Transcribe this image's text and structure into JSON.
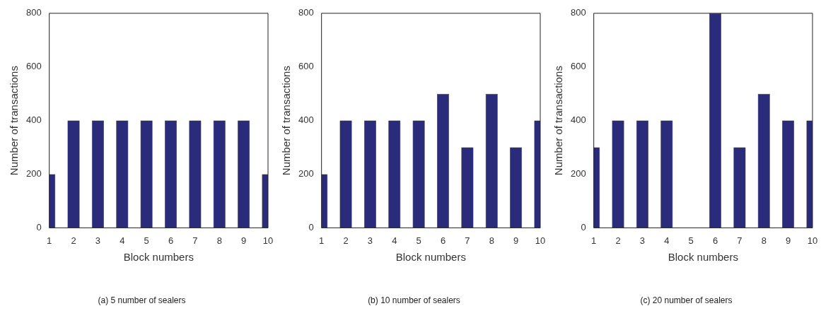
{
  "chart_data": [
    {
      "type": "bar",
      "x": [
        1,
        2,
        3,
        4,
        5,
        6,
        7,
        8,
        9,
        10
      ],
      "values": [
        200,
        400,
        400,
        400,
        400,
        400,
        400,
        400,
        400,
        200
      ],
      "color": "#2b2b7c",
      "xlim": [
        1,
        10
      ],
      "xticks": [
        1,
        2,
        3,
        4,
        5,
        6,
        7,
        8,
        9,
        10
      ],
      "ylim": [
        0,
        800
      ],
      "yticks": [
        0,
        200,
        400,
        600,
        800
      ],
      "xlabel": "Block numbers",
      "ylabel": "Number of transactions",
      "grid": false,
      "legend": false,
      "annotations": [
        "(a) 5 number of sealers"
      ]
    },
    {
      "type": "bar",
      "x": [
        1,
        2,
        3,
        4,
        5,
        6,
        7,
        8,
        9,
        10
      ],
      "values": [
        200,
        400,
        400,
        400,
        400,
        500,
        300,
        500,
        300,
        400
      ],
      "color": "#2b2b7c",
      "xlim": [
        1,
        10
      ],
      "xticks": [
        1,
        2,
        3,
        4,
        5,
        6,
        7,
        8,
        9,
        10
      ],
      "ylim": [
        0,
        800
      ],
      "yticks": [
        0,
        200,
        400,
        600,
        800
      ],
      "xlabel": "Block numbers",
      "ylabel": "Number of transactions",
      "grid": false,
      "legend": false,
      "annotations": [
        "(b) 10 number of sealers"
      ]
    },
    {
      "type": "bar",
      "x": [
        1,
        2,
        3,
        4,
        5,
        6,
        7,
        8,
        9,
        10
      ],
      "values": [
        300,
        400,
        400,
        400,
        0,
        800,
        300,
        500,
        400,
        400
      ],
      "color": "#2b2b7c",
      "xlim": [
        1,
        10
      ],
      "xticks": [
        1,
        2,
        3,
        4,
        5,
        6,
        7,
        8,
        9,
        10
      ],
      "ylim": [
        0,
        800
      ],
      "yticks": [
        0,
        200,
        400,
        600,
        800
      ],
      "xlabel": "Block numbers",
      "ylabel": "Number of transactions",
      "grid": false,
      "legend": false,
      "annotations": [
        "(c) 20 number of sealers"
      ]
    }
  ]
}
